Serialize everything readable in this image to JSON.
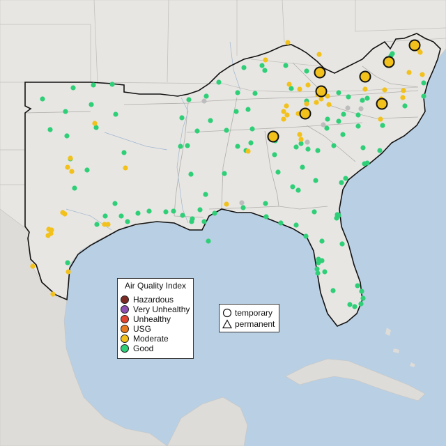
{
  "legend": {
    "title": "Air Quality Index",
    "categories": [
      {
        "label": "Hazardous",
        "color": "#7e2a24"
      },
      {
        "label": "Very Unhealthy",
        "color": "#8e4fb3"
      },
      {
        "label": "Unhealthy",
        "color": "#e2442f"
      },
      {
        "label": "USG",
        "color": "#e87a1f"
      },
      {
        "label": "Moderate",
        "color": "#f2c11b"
      },
      {
        "label": "Good",
        "color": "#2fcf78"
      }
    ]
  },
  "shape_legend": {
    "temporary": "temporary",
    "permanent": "permanent"
  },
  "colors": {
    "ocean": "#b9cfe3",
    "land": "#e8e6e3",
    "foreign_land": "#dcdad6",
    "good": "#2fcf78",
    "moderate": "#f2c11b",
    "no_data": "#bdbdbd"
  }
}
